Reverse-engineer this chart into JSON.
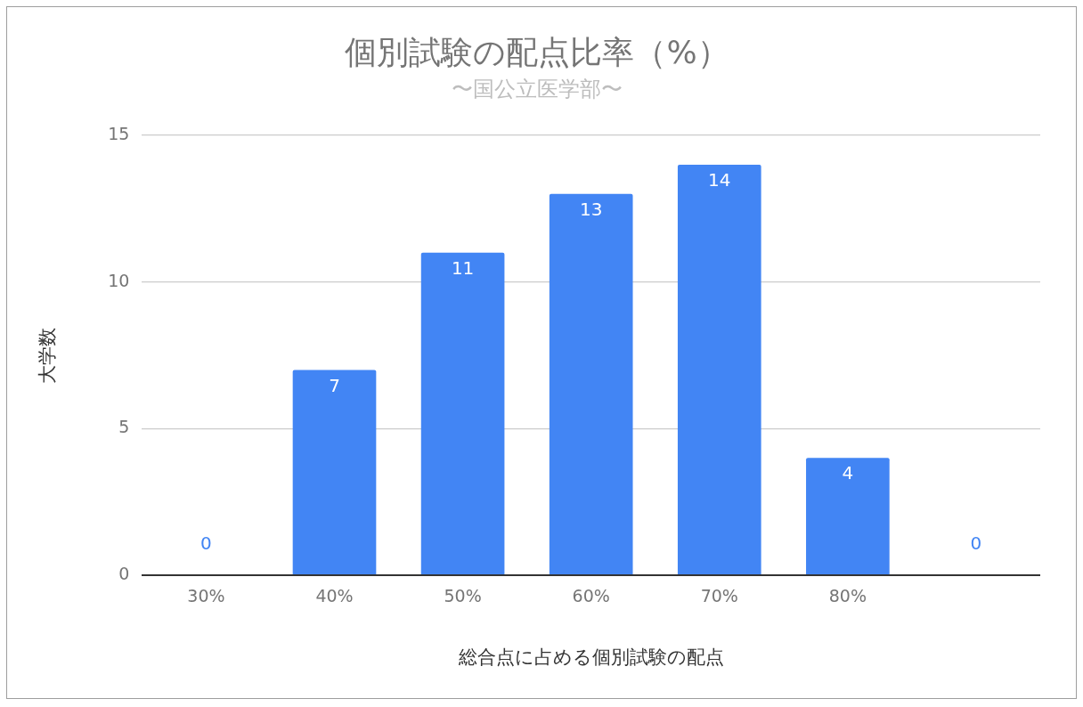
{
  "chart_data": {
    "type": "bar",
    "title": "個別試験の配点比率（%）",
    "subtitle": "〜国公立医学部〜",
    "xlabel": "総合点に占める個別試験の配点",
    "ylabel": "大学数",
    "categories": [
      "30%",
      "40%",
      "50%",
      "60%",
      "70%",
      "80%",
      null
    ],
    "values": [
      0,
      7,
      11,
      13,
      14,
      4,
      0
    ],
    "color": "#4285f4",
    "ylim": [
      0,
      15
    ],
    "yticks": [
      0,
      5,
      10,
      15
    ],
    "grid": "y",
    "legend": false,
    "data_labels": true
  }
}
